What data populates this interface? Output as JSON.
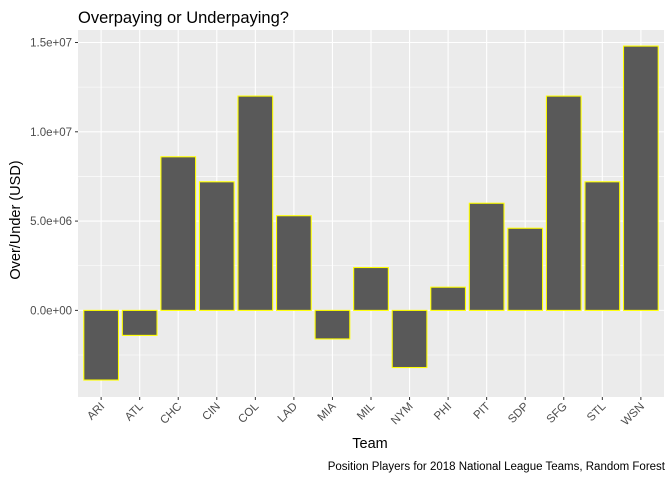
{
  "chart_data": {
    "type": "bar",
    "title": "Overpaying or Underpaying?",
    "xlabel": "Team",
    "ylabel": "Over/Under (USD)",
    "caption": "Position Players for 2018 National League Teams, Random Forest",
    "categories": [
      "ARI",
      "ATL",
      "CHC",
      "CIN",
      "COL",
      "LAD",
      "MIA",
      "MIL",
      "NYM",
      "PHI",
      "PIT",
      "SDP",
      "SFG",
      "STL",
      "WSN"
    ],
    "values": [
      -3900000,
      -1400000,
      8600000,
      7200000,
      12000000,
      5300000,
      -1600000,
      2400000,
      -3200000,
      1300000,
      6000000,
      4600000,
      12000000,
      7200000,
      14800000
    ],
    "ylim": [
      -4850000,
      15700000
    ],
    "yticks": [
      0,
      5000000,
      10000000,
      15000000
    ],
    "ytick_labels": [
      "0.0e+00",
      "5.0e+06",
      "1.0e+07",
      "1.5e+07"
    ],
    "grid": true,
    "colors": {
      "panel": "#ebebeb",
      "grid_major": "#ffffff",
      "bar_fill": "#595959",
      "bar_outline": "#ffff00",
      "tick": "#333333"
    }
  }
}
